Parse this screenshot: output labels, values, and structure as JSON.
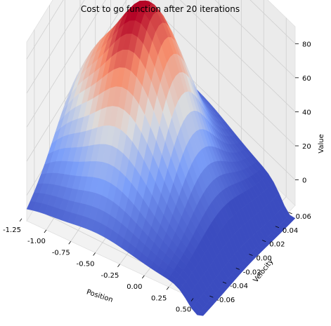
{
  "chart_data": {
    "type": "surface",
    "title": "Cost to go function after 20 iterations",
    "xlabel": "Position",
    "ylabel": "Velocity",
    "zlabel": "Value",
    "xlim": [
      -1.2,
      0.6
    ],
    "ylim": [
      -0.07,
      0.07
    ],
    "zlim": [
      -15,
      90
    ],
    "xticks": [
      "-1.25",
      "-1.00",
      "-0.75",
      "-0.50",
      "-0.25",
      "0.00",
      "0.25",
      "0.50"
    ],
    "yticks": [
      "-0.06",
      "-0.04",
      "-0.02",
      "0.00",
      "0.02",
      "0.04",
      "0.06"
    ],
    "zticks": [
      "0",
      "20",
      "40",
      "60",
      "80"
    ],
    "colormap": "coolwarm",
    "grid": true,
    "peak": {
      "x": -0.5,
      "y": 0.0,
      "z": 88
    },
    "approx_min": -12,
    "values_unit": "cost-to-go"
  }
}
